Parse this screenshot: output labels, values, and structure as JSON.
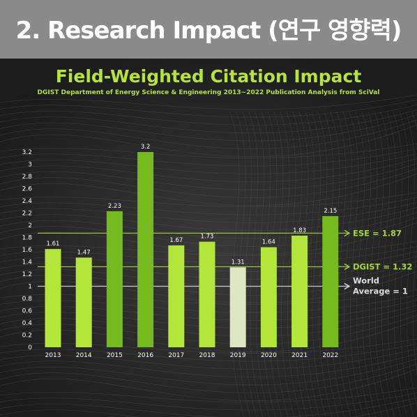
{
  "banner": {
    "title": "2. Research Impact (연구 영향력)"
  },
  "chart_data": {
    "type": "bar",
    "title": "Field-Weighted Citation Impact",
    "subtitle": "DGIST Department of Energy Science & Engineering 2013~2022 Publication Analysis from SciVal",
    "categories": [
      "2013",
      "2014",
      "2015",
      "2016",
      "2017",
      "2018",
      "2019",
      "2020",
      "2021",
      "2022"
    ],
    "values": [
      1.61,
      1.47,
      2.23,
      3.2,
      1.67,
      1.73,
      1.31,
      1.64,
      1.83,
      2.15
    ],
    "value_labels": [
      "1.61",
      "1.47",
      "2.23",
      "3.2",
      "1.67",
      "1.73",
      "1.31",
      "1.64",
      "1.83",
      "2.15"
    ],
    "bar_colors": [
      "#b3e53a",
      "#b3e53a",
      "#75bb1f",
      "#75bb1f",
      "#b3e53a",
      "#b3e53a",
      "#dfe6c4",
      "#b3e53a",
      "#b3e53a",
      "#75bb1f"
    ],
    "ylim": [
      0,
      3.2
    ],
    "yticks": [
      "0",
      "0.2",
      "0.4",
      "0.6",
      "0.8",
      "1",
      "1.2",
      "1.4",
      "1.6",
      "1.8",
      "2",
      "2.2",
      "2.4",
      "2.6",
      "2.8",
      "3",
      "3.2"
    ],
    "reference_lines": [
      {
        "label": "ESE = 1.87",
        "value": 1.87,
        "color": "#a8d43a"
      },
      {
        "label": "DGIST = 1.32",
        "value": 1.32,
        "color": "#a8d43a"
      },
      {
        "label": "World",
        "label2": "Average = 1",
        "value": 1.0,
        "color": "#dcdcdc"
      }
    ],
    "grid": false
  }
}
